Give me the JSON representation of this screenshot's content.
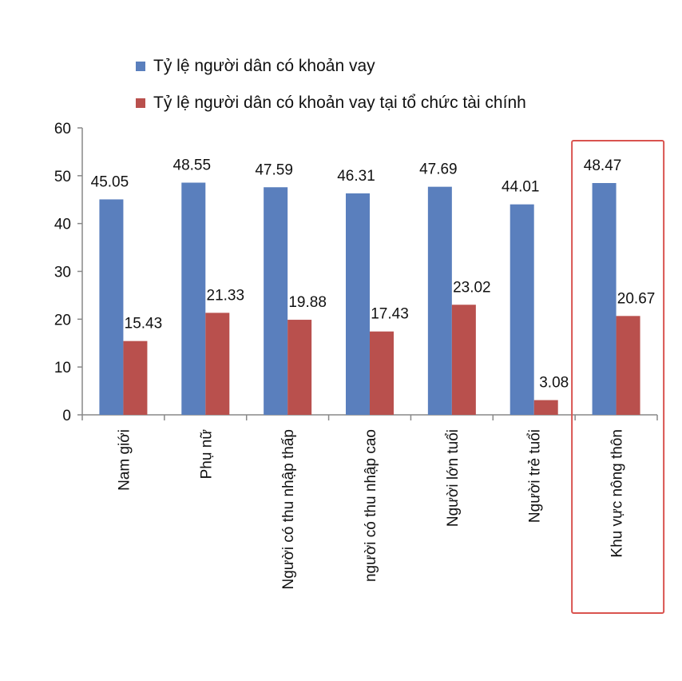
{
  "chart_data": {
    "type": "bar",
    "categories": [
      "Nam giới",
      "Phụ nữ",
      "Người có thu nhập thấp",
      "người có thu nhập cao",
      "Người lớn tuổi",
      "Người trẻ tuổi",
      "Khu vực nông thôn"
    ],
    "series": [
      {
        "name": "Tỷ lệ người dân có khoản vay",
        "color": "#5a7fbd",
        "values": [
          45.05,
          48.55,
          47.59,
          46.31,
          47.69,
          44.01,
          48.47
        ]
      },
      {
        "name": "Tỷ lệ người dân có khoản vay tại tổ chức tài chính",
        "color": "#b9504d",
        "values": [
          15.43,
          21.33,
          19.88,
          17.43,
          23.02,
          3.08,
          20.67
        ]
      }
    ],
    "data_labels": [
      [
        "45.05",
        "48.55",
        "47.59",
        "46.31",
        "47.69",
        "44.01",
        "48.47"
      ],
      [
        "15.43",
        "21.33",
        "19.88",
        "17.43",
        "23.02",
        "3.08",
        "20.67"
      ]
    ],
    "yticks": [
      "0",
      "10",
      "20",
      "30",
      "40",
      "50",
      "60"
    ],
    "ylim": [
      0,
      60
    ],
    "legend_position": "top",
    "highlight_category": "Khu vực nông thôn",
    "highlight_color": "#d9534f"
  }
}
